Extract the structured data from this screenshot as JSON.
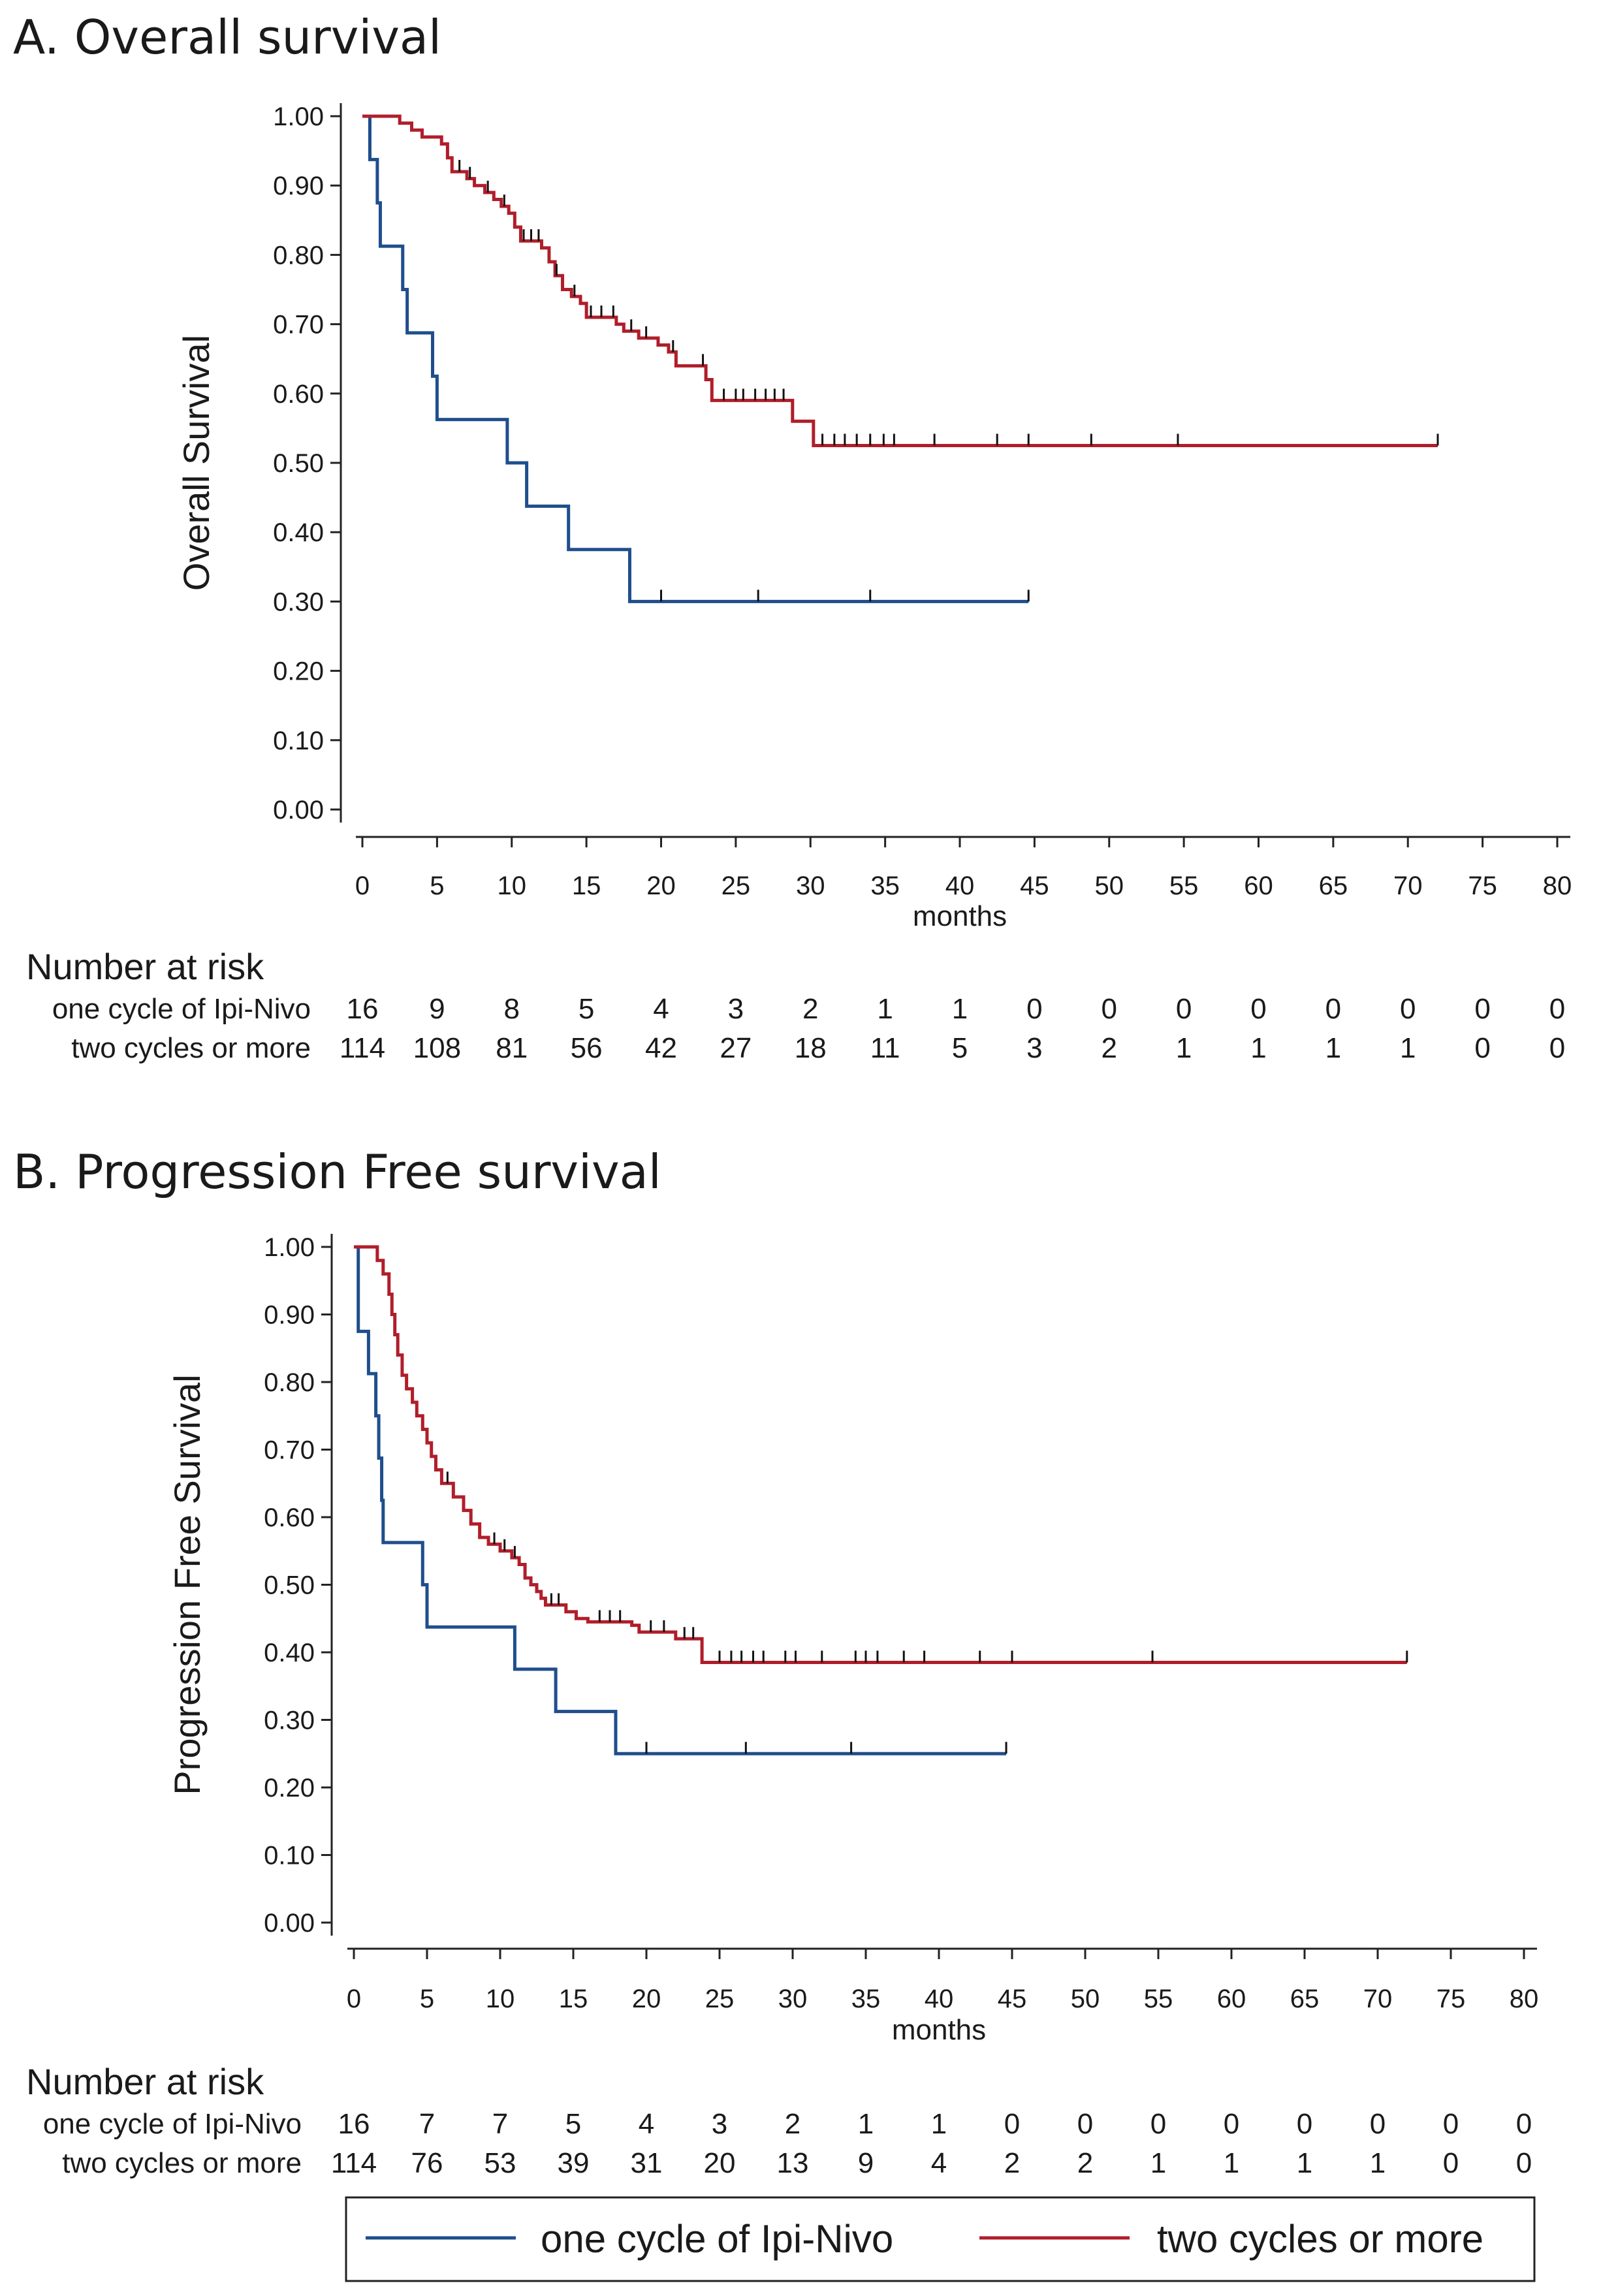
{
  "legend": {
    "entries": [
      {
        "label": "one cycle of Ipi-Nivo",
        "color": "#1f4e8c"
      },
      {
        "label": "two cycles or more",
        "color": "#b01e2a"
      }
    ]
  },
  "chart_data": [
    {
      "type": "line",
      "title": "A. Overall survival",
      "xlabel": "months",
      "ylabel": "Overall Survival",
      "xlim": [
        0,
        80
      ],
      "ylim": [
        0,
        1
      ],
      "x_ticks": [
        0,
        5,
        10,
        15,
        20,
        25,
        30,
        35,
        40,
        45,
        50,
        55,
        60,
        65,
        70,
        75,
        80
      ],
      "y_ticks": [
        "0.00",
        "0.10",
        "0.20",
        "0.30",
        "0.40",
        "0.50",
        "0.60",
        "0.70",
        "0.80",
        "0.90",
        "1.00"
      ],
      "grid": false,
      "series": [
        {
          "name": "one cycle of Ipi-Nivo",
          "color": "#1f4e8c",
          "steps": [
            [
              0,
              1.0
            ],
            [
              0.5,
              0.9375
            ],
            [
              1.0,
              0.875
            ],
            [
              1.2,
              0.8125
            ],
            [
              2.7,
              0.75
            ],
            [
              3.0,
              0.6875
            ],
            [
              4.7,
              0.625
            ],
            [
              5.0,
              0.5625
            ],
            [
              9.7,
              0.5
            ],
            [
              11.0,
              0.4375
            ],
            [
              13.8,
              0.375
            ],
            [
              17.9,
              0.3
            ],
            [
              44.6,
              0.3
            ]
          ],
          "censored": [
            [
              20.0,
              0.3
            ],
            [
              26.5,
              0.3
            ],
            [
              34.0,
              0.3
            ],
            [
              44.6,
              0.3
            ]
          ]
        },
        {
          "name": "two cycles or more",
          "color": "#b01e2a",
          "steps": [
            [
              0,
              1.0
            ],
            [
              2.5,
              0.99
            ],
            [
              3.3,
              0.98
            ],
            [
              4.0,
              0.97
            ],
            [
              5.3,
              0.96
            ],
            [
              5.7,
              0.94
            ],
            [
              6.0,
              0.92
            ],
            [
              7.0,
              0.91
            ],
            [
              7.5,
              0.9
            ],
            [
              8.2,
              0.89
            ],
            [
              8.8,
              0.88
            ],
            [
              9.3,
              0.87
            ],
            [
              9.8,
              0.86
            ],
            [
              10.2,
              0.84
            ],
            [
              10.6,
              0.82
            ],
            [
              12.0,
              0.81
            ],
            [
              12.5,
              0.79
            ],
            [
              12.9,
              0.77
            ],
            [
              13.4,
              0.75
            ],
            [
              14.0,
              0.74
            ],
            [
              14.6,
              0.73
            ],
            [
              15.0,
              0.71
            ],
            [
              17.0,
              0.7
            ],
            [
              17.5,
              0.69
            ],
            [
              18.5,
              0.68
            ],
            [
              19.8,
              0.67
            ],
            [
              20.5,
              0.66
            ],
            [
              21.0,
              0.64
            ],
            [
              23.0,
              0.62
            ],
            [
              23.4,
              0.59
            ],
            [
              28.8,
              0.56
            ],
            [
              30.2,
              0.525
            ],
            [
              72.0,
              0.525
            ]
          ],
          "censored": [
            [
              6.5,
              0.92
            ],
            [
              7.2,
              0.91
            ],
            [
              8.4,
              0.89
            ],
            [
              9.5,
              0.87
            ],
            [
              10.8,
              0.82
            ],
            [
              11.3,
              0.82
            ],
            [
              11.8,
              0.82
            ],
            [
              13.0,
              0.77
            ],
            [
              14.2,
              0.74
            ],
            [
              15.3,
              0.71
            ],
            [
              16.0,
              0.71
            ],
            [
              16.8,
              0.71
            ],
            [
              18.0,
              0.69
            ],
            [
              19.0,
              0.68
            ],
            [
              20.8,
              0.66
            ],
            [
              22.8,
              0.64
            ],
            [
              24.2,
              0.59
            ],
            [
              25.0,
              0.59
            ],
            [
              25.5,
              0.59
            ],
            [
              26.3,
              0.59
            ],
            [
              27.0,
              0.59
            ],
            [
              27.6,
              0.59
            ],
            [
              28.2,
              0.59
            ],
            [
              30.8,
              0.525
            ],
            [
              31.6,
              0.525
            ],
            [
              32.3,
              0.525
            ],
            [
              33.1,
              0.525
            ],
            [
              34.0,
              0.525
            ],
            [
              34.9,
              0.525
            ],
            [
              35.6,
              0.525
            ],
            [
              38.3,
              0.525
            ],
            [
              42.5,
              0.525
            ],
            [
              44.6,
              0.525
            ],
            [
              48.8,
              0.525
            ],
            [
              54.6,
              0.525
            ],
            [
              72.0,
              0.525
            ]
          ]
        }
      ],
      "risk_table": {
        "heading": "Number at risk",
        "times": [
          0,
          5,
          10,
          15,
          20,
          25,
          30,
          35,
          40,
          45,
          50,
          55,
          60,
          65,
          70,
          75,
          80
        ],
        "rows": [
          {
            "label": "one cycle of Ipi-Nivo",
            "values": [
              "16",
              "9",
              "8",
              "5",
              "4",
              "3",
              "2",
              "1",
              "1",
              "0",
              "0",
              "0",
              "0",
              "0",
              "0",
              "0",
              "0"
            ]
          },
          {
            "label": "two cycles or more",
            "values": [
              "114",
              "108",
              "81",
              "56",
              "42",
              "27",
              "18",
              "11",
              "5",
              "3",
              "2",
              "1",
              "1",
              "1",
              "1",
              "0",
              "0"
            ]
          }
        ]
      }
    },
    {
      "type": "line",
      "title": "B. Progression Free  survival",
      "xlabel": "months",
      "ylabel": "Progression Free Survival",
      "xlim": [
        0,
        80
      ],
      "ylim": [
        0,
        1
      ],
      "x_ticks": [
        0,
        5,
        10,
        15,
        20,
        25,
        30,
        35,
        40,
        45,
        50,
        55,
        60,
        65,
        70,
        75,
        80
      ],
      "y_ticks": [
        "0.00",
        "0.10",
        "0.20",
        "0.30",
        "0.40",
        "0.50",
        "0.60",
        "0.70",
        "0.80",
        "0.90",
        "1.00"
      ],
      "grid": false,
      "series": [
        {
          "name": "one cycle of Ipi-Nivo",
          "color": "#1f4e8c",
          "steps": [
            [
              0,
              1.0
            ],
            [
              0.3,
              0.875
            ],
            [
              1.0,
              0.8125
            ],
            [
              1.5,
              0.75
            ],
            [
              1.7,
              0.6875
            ],
            [
              1.9,
              0.625
            ],
            [
              2.0,
              0.5625
            ],
            [
              4.7,
              0.5
            ],
            [
              5.0,
              0.4375
            ],
            [
              11.0,
              0.375
            ],
            [
              13.8,
              0.3125
            ],
            [
              17.9,
              0.25
            ],
            [
              44.6,
              0.25
            ]
          ],
          "censored": [
            [
              20.0,
              0.25
            ],
            [
              26.8,
              0.25
            ],
            [
              34.0,
              0.25
            ],
            [
              44.6,
              0.25
            ]
          ]
        },
        {
          "name": "two cycles or more",
          "color": "#b01e2a",
          "steps": [
            [
              0,
              1.0
            ],
            [
              1.6,
              0.98
            ],
            [
              2.0,
              0.96
            ],
            [
              2.4,
              0.93
            ],
            [
              2.6,
              0.9
            ],
            [
              2.8,
              0.87
            ],
            [
              3.0,
              0.84
            ],
            [
              3.3,
              0.81
            ],
            [
              3.6,
              0.79
            ],
            [
              4.0,
              0.77
            ],
            [
              4.3,
              0.75
            ],
            [
              4.7,
              0.73
            ],
            [
              5.0,
              0.71
            ],
            [
              5.3,
              0.69
            ],
            [
              5.6,
              0.67
            ],
            [
              6.0,
              0.65
            ],
            [
              6.8,
              0.63
            ],
            [
              7.5,
              0.61
            ],
            [
              8.0,
              0.59
            ],
            [
              8.6,
              0.57
            ],
            [
              9.2,
              0.56
            ],
            [
              10.0,
              0.55
            ],
            [
              10.8,
              0.54
            ],
            [
              11.3,
              0.53
            ],
            [
              11.7,
              0.51
            ],
            [
              12.1,
              0.5
            ],
            [
              12.5,
              0.49
            ],
            [
              12.8,
              0.48
            ],
            [
              13.1,
              0.47
            ],
            [
              14.5,
              0.46
            ],
            [
              15.2,
              0.45
            ],
            [
              16.0,
              0.445
            ],
            [
              19.0,
              0.44
            ],
            [
              19.5,
              0.43
            ],
            [
              22.0,
              0.42
            ],
            [
              23.8,
              0.385
            ],
            [
              72.0,
              0.385
            ]
          ],
          "censored": [
            [
              6.4,
              0.65
            ],
            [
              9.6,
              0.56
            ],
            [
              10.3,
              0.55
            ],
            [
              11.0,
              0.54
            ],
            [
              13.5,
              0.47
            ],
            [
              14.0,
              0.47
            ],
            [
              16.8,
              0.445
            ],
            [
              17.5,
              0.445
            ],
            [
              18.2,
              0.445
            ],
            [
              20.3,
              0.43
            ],
            [
              21.2,
              0.43
            ],
            [
              22.6,
              0.42
            ],
            [
              23.2,
              0.42
            ],
            [
              25.0,
              0.385
            ],
            [
              25.8,
              0.385
            ],
            [
              26.5,
              0.385
            ],
            [
              27.3,
              0.385
            ],
            [
              28.0,
              0.385
            ],
            [
              29.5,
              0.385
            ],
            [
              30.2,
              0.385
            ],
            [
              32.0,
              0.385
            ],
            [
              34.3,
              0.385
            ],
            [
              35.0,
              0.385
            ],
            [
              35.8,
              0.385
            ],
            [
              37.6,
              0.385
            ],
            [
              39.0,
              0.385
            ],
            [
              42.8,
              0.385
            ],
            [
              45.0,
              0.385
            ],
            [
              54.6,
              0.385
            ],
            [
              72.0,
              0.385
            ]
          ]
        }
      ],
      "risk_table": {
        "heading": "Number at risk",
        "times": [
          0,
          5,
          10,
          15,
          20,
          25,
          30,
          35,
          40,
          45,
          50,
          55,
          60,
          65,
          70,
          75,
          80
        ],
        "rows": [
          {
            "label": "one cycle of Ipi-Nivo",
            "values": [
              "16",
              "7",
              "7",
              "5",
              "4",
              "3",
              "2",
              "1",
              "1",
              "0",
              "0",
              "0",
              "0",
              "0",
              "0",
              "0",
              "0"
            ]
          },
          {
            "label": "two cycles or more",
            "values": [
              "114",
              "76",
              "53",
              "39",
              "31",
              "20",
              "13",
              "9",
              "4",
              "2",
              "2",
              "1",
              "1",
              "1",
              "1",
              "0",
              "0"
            ]
          }
        ]
      }
    }
  ]
}
